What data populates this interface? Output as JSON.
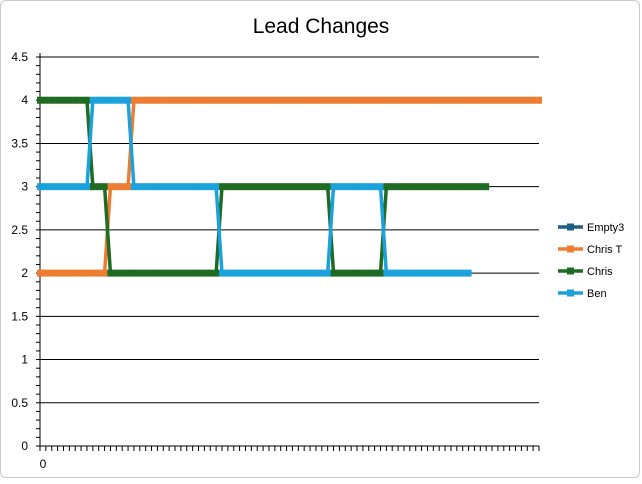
{
  "chart_data": {
    "type": "line",
    "title": "Lead Changes",
    "xlabel": "",
    "ylabel": "",
    "ylim": [
      0,
      4.5
    ],
    "yticks": [
      0,
      0.5,
      1,
      1.5,
      2,
      2.5,
      3,
      3.5,
      4,
      4.5
    ],
    "ytick_labels": [
      "0",
      "0.5",
      "1",
      "1.5",
      "2",
      "2.5",
      "3",
      "3.5",
      "4",
      "4.5"
    ],
    "x_categories": 86,
    "x_tick_label": "0",
    "grid": true,
    "legend_position": "right",
    "series": [
      {
        "name": "Empty3",
        "color": "#1f5f86",
        "values": []
      },
      {
        "name": "Chris T",
        "color": "#ed7d31",
        "values": [
          2,
          2,
          2,
          2,
          2,
          2,
          2,
          2,
          2,
          2,
          2,
          2,
          3,
          3,
          3,
          3,
          4,
          4,
          4,
          4,
          4,
          4,
          4,
          4,
          4,
          4,
          4,
          4,
          4,
          4,
          4,
          4,
          4,
          4,
          4,
          4,
          4,
          4,
          4,
          4,
          4,
          4,
          4,
          4,
          4,
          4,
          4,
          4,
          4,
          4,
          4,
          4,
          4,
          4,
          4,
          4,
          4,
          4,
          4,
          4,
          4,
          4,
          4,
          4,
          4,
          4,
          4,
          4,
          4,
          4,
          4,
          4,
          4,
          4,
          4,
          4,
          4,
          4,
          4,
          4,
          4,
          4,
          4,
          4,
          4,
          4
        ]
      },
      {
        "name": "Chris",
        "color": "#1e6b24",
        "values": [
          4,
          4,
          4,
          4,
          4,
          4,
          4,
          4,
          4,
          3,
          3,
          3,
          2,
          2,
          2,
          2,
          2,
          2,
          2,
          2,
          2,
          2,
          2,
          2,
          2,
          2,
          2,
          2,
          2,
          2,
          2,
          3,
          3,
          3,
          3,
          3,
          3,
          3,
          3,
          3,
          3,
          3,
          3,
          3,
          3,
          3,
          3,
          3,
          3,
          3,
          2,
          2,
          2,
          2,
          2,
          2,
          2,
          2,
          2,
          3,
          3,
          3,
          3,
          3,
          3,
          3,
          3,
          3,
          3,
          3,
          3,
          3,
          3,
          3,
          3,
          3,
          3
        ]
      },
      {
        "name": "Ben",
        "color": "#1ba1dc",
        "values": [
          3,
          3,
          3,
          3,
          3,
          3,
          3,
          3,
          3,
          4,
          4,
          4,
          4,
          4,
          4,
          4,
          3,
          3,
          3,
          3,
          3,
          3,
          3,
          3,
          3,
          3,
          3,
          3,
          3,
          3,
          3,
          2,
          2,
          2,
          2,
          2,
          2,
          2,
          2,
          2,
          2,
          2,
          2,
          2,
          2,
          2,
          2,
          2,
          2,
          2,
          3,
          3,
          3,
          3,
          3,
          3,
          3,
          3,
          3,
          2,
          2,
          2,
          2,
          2,
          2,
          2,
          2,
          2,
          2,
          2,
          2,
          2,
          2,
          2
        ]
      }
    ]
  }
}
